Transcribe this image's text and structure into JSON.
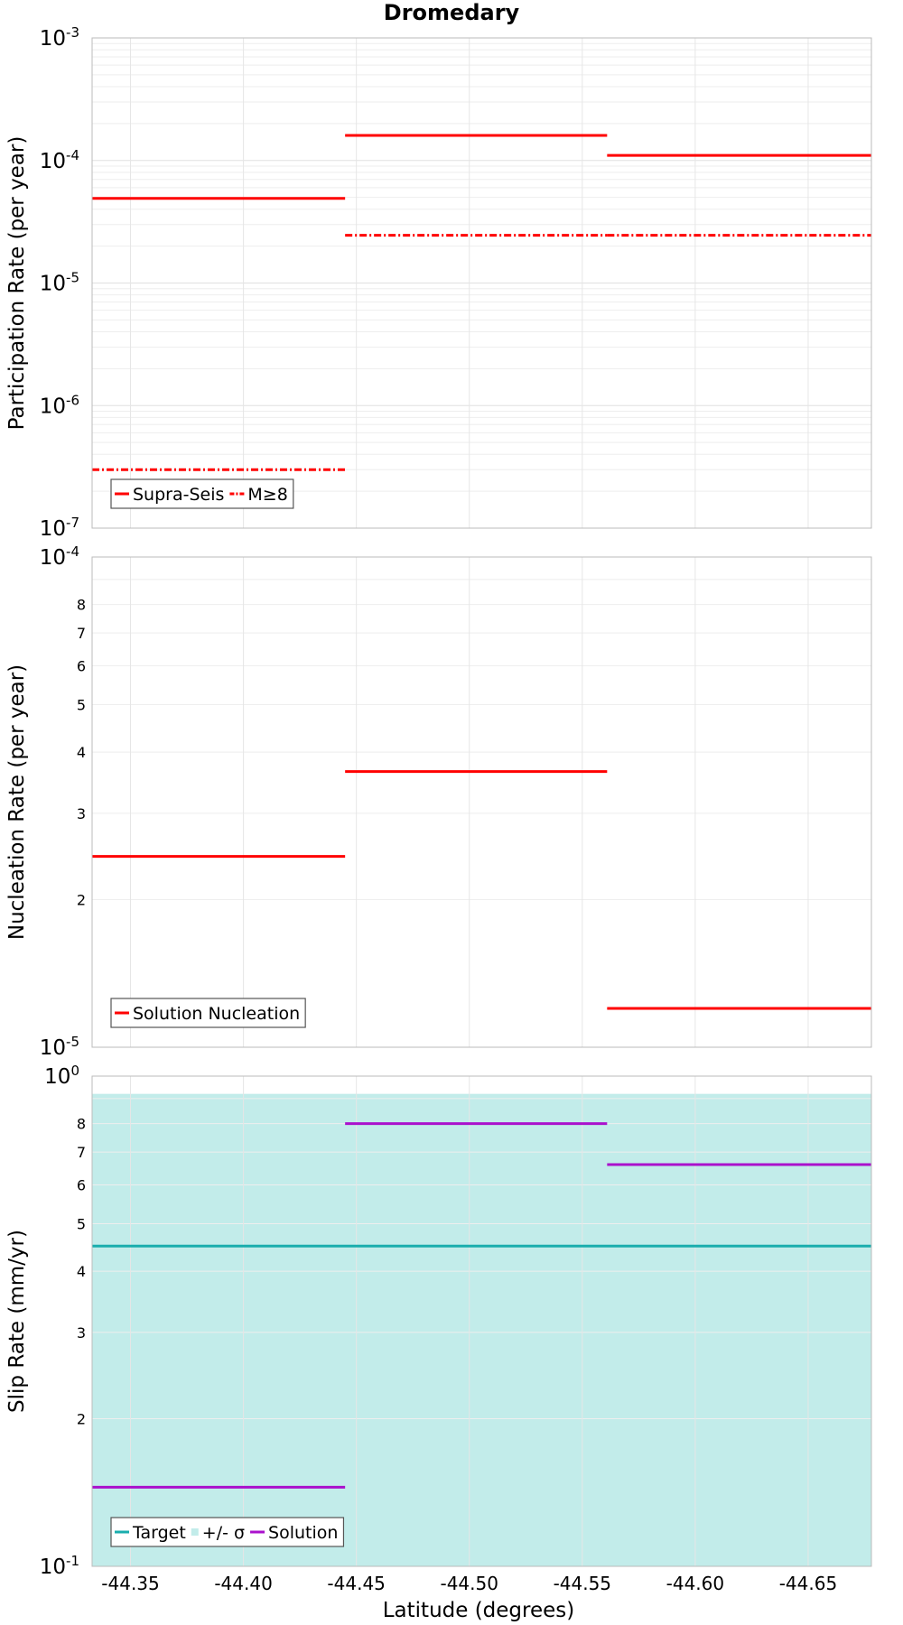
{
  "chart_data": {
    "type": "line",
    "title": "Dromedary",
    "xlabel": "Latitude (degrees)",
    "xlim": [
      -44.333,
      -44.678
    ],
    "x_ticks": [
      "-44.35",
      "-44.40",
      "-44.45",
      "-44.50",
      "-44.55",
      "-44.60",
      "-44.65"
    ],
    "x_tick_values": [
      -44.35,
      -44.4,
      -44.45,
      -44.5,
      -44.55,
      -44.6,
      -44.65
    ],
    "panels": [
      {
        "ylabel": "Participation Rate (per year)",
        "yscale": "log",
        "ylim": [
          1e-07,
          0.001
        ],
        "y_ticks": [
          {
            "base": "10",
            "exp": "-3"
          },
          {
            "base": "10",
            "exp": "-4"
          },
          {
            "base": "10",
            "exp": "-5"
          },
          {
            "base": "10",
            "exp": "-6"
          },
          {
            "base": "10",
            "exp": "-7"
          }
        ],
        "series": [
          {
            "name": "Supra-Seis",
            "style": "solid",
            "color": "#ff0000",
            "segments": [
              {
                "x0": -44.333,
                "x1": -44.445,
                "y": 4.9e-05
              },
              {
                "x0": -44.445,
                "x1": -44.561,
                "y": 0.00016
              },
              {
                "x0": -44.561,
                "x1": -44.678,
                "y": 0.00011
              }
            ]
          },
          {
            "name": "M≥8",
            "style": "dashdot",
            "color": "#ff0000",
            "segments": [
              {
                "x0": -44.333,
                "x1": -44.445,
                "y": 3e-07
              },
              {
                "x0": -44.445,
                "x1": -44.561,
                "y": 2.45e-05
              },
              {
                "x0": -44.561,
                "x1": -44.678,
                "y": 2.45e-05
              }
            ]
          }
        ],
        "legend": [
          "Supra-Seis",
          "M≥8"
        ]
      },
      {
        "ylabel": "Nucleation Rate (per year)",
        "yscale": "log",
        "ylim": [
          1e-05,
          0.0001
        ],
        "y_ticks": [
          {
            "base": "10",
            "exp": "-4"
          },
          {
            "base": "10",
            "exp": "-5"
          }
        ],
        "y_minor_labels": [
          "8",
          "7",
          "6",
          "5",
          "4",
          "3",
          "2"
        ],
        "series": [
          {
            "name": "Solution Nucleation",
            "style": "solid",
            "color": "#ff0000",
            "segments": [
              {
                "x0": -44.333,
                "x1": -44.445,
                "y": 2.45e-05
              },
              {
                "x0": -44.445,
                "x1": -44.561,
                "y": 3.65e-05
              },
              {
                "x0": -44.561,
                "x1": -44.678,
                "y": 1.2e-05
              }
            ]
          }
        ],
        "legend": [
          "Solution Nucleation"
        ]
      },
      {
        "ylabel": "Slip Rate (mm/yr)",
        "yscale": "log",
        "ylim": [
          0.1,
          1.0
        ],
        "y_ticks": [
          {
            "base": "10",
            "exp": "0"
          },
          {
            "base": "10",
            "exp": "-1"
          }
        ],
        "y_minor_labels": [
          "8",
          "7",
          "6",
          "5",
          "4",
          "3",
          "2"
        ],
        "band": {
          "name": "+/- σ",
          "low": 0.1,
          "high": 0.92,
          "color": "#c2ecea"
        },
        "series": [
          {
            "name": "Target",
            "style": "solid",
            "color": "#1aadad",
            "segments": [
              {
                "x0": -44.333,
                "x1": -44.678,
                "y": 0.45
              }
            ]
          },
          {
            "name": "Solution",
            "style": "solid",
            "color": "#aa11cc",
            "segments": [
              {
                "x0": -44.333,
                "x1": -44.445,
                "y": 0.145
              },
              {
                "x0": -44.445,
                "x1": -44.561,
                "y": 0.8
              },
              {
                "x0": -44.561,
                "x1": -44.678,
                "y": 0.66
              }
            ]
          }
        ],
        "legend": [
          "Target",
          "+/- σ",
          "Solution"
        ]
      }
    ]
  }
}
